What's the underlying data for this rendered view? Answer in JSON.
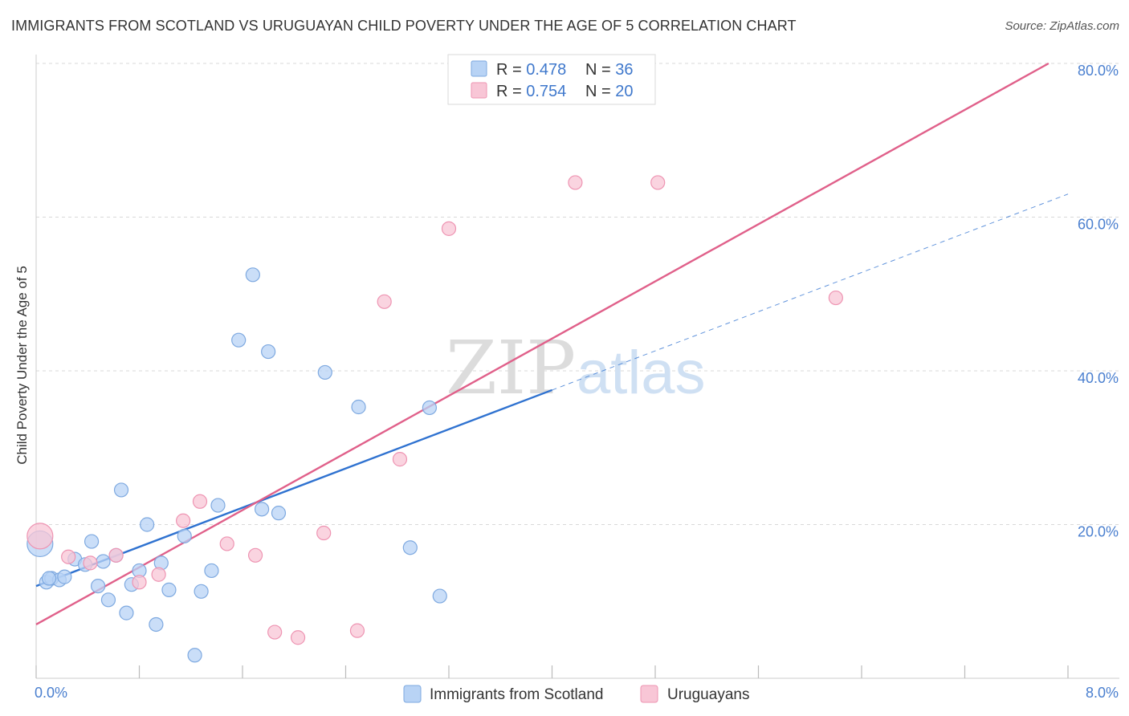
{
  "header": {
    "title": "IMMIGRANTS FROM SCOTLAND VS URUGUAYAN CHILD POVERTY UNDER THE AGE OF 5 CORRELATION CHART",
    "source": "Source: ZipAtlas.com"
  },
  "watermark": {
    "zip": "ZIP",
    "atlas": "atlas"
  },
  "legend_top": {
    "rows": [
      {
        "r_label": "R = ",
        "r_value": "0.478",
        "n_label": "N = ",
        "n_value": "36"
      },
      {
        "r_label": "R = ",
        "r_value": "0.754",
        "n_label": "N = ",
        "n_value": "20"
      }
    ]
  },
  "colors": {
    "blue_fill": "#b8d3f5",
    "blue_stroke": "#7ea9e0",
    "blue_line": "#2f72d0",
    "pink_fill": "#f8c6d6",
    "pink_stroke": "#ee94b2",
    "pink_line": "#e0608a",
    "value_text": "#3f78cc",
    "grid": "#d8d8d8"
  },
  "chart_data": {
    "type": "scatter",
    "xlabel": "",
    "ylabel": "Child Poverty Under the Age of 5",
    "xlim": [
      0,
      8
    ],
    "ylim": [
      0,
      80
    ],
    "x_tick_labels": [
      "0.0%",
      "8.0%"
    ],
    "y_ticks": [
      20,
      40,
      60,
      80
    ],
    "y_tick_labels": [
      "20.0%",
      "40.0%",
      "60.0%",
      "80.0%"
    ],
    "grid": true,
    "legend_position": "bottom-center",
    "series": [
      {
        "name": "Immigrants from Scotland",
        "r": 0.478,
        "n": 36,
        "trend": {
          "x": [
            0.0,
            4.0
          ],
          "y": [
            12.0,
            37.5
          ]
        },
        "trend_extension": {
          "x": [
            4.0,
            8.0
          ],
          "y": [
            37.5,
            63.0
          ]
        },
        "points": [
          [
            0.03,
            17.5
          ],
          [
            0.08,
            12.5
          ],
          [
            0.12,
            13.0
          ],
          [
            0.18,
            12.8
          ],
          [
            0.22,
            13.2
          ],
          [
            0.3,
            15.5
          ],
          [
            0.38,
            14.8
          ],
          [
            0.43,
            17.8
          ],
          [
            0.48,
            12.0
          ],
          [
            0.52,
            15.2
          ],
          [
            0.56,
            10.2
          ],
          [
            0.62,
            16.0
          ],
          [
            0.66,
            24.5
          ],
          [
            0.7,
            8.5
          ],
          [
            0.74,
            12.2
          ],
          [
            0.8,
            14.0
          ],
          [
            0.86,
            20.0
          ],
          [
            0.93,
            7.0
          ],
          [
            0.97,
            15.0
          ],
          [
            1.03,
            11.5
          ],
          [
            1.15,
            18.5
          ],
          [
            1.23,
            3.0
          ],
          [
            1.28,
            11.3
          ],
          [
            1.36,
            14.0
          ],
          [
            1.41,
            22.5
          ],
          [
            1.57,
            44.0
          ],
          [
            1.68,
            52.5
          ],
          [
            1.75,
            22.0
          ],
          [
            1.8,
            42.5
          ],
          [
            1.88,
            21.5
          ],
          [
            2.24,
            39.8
          ],
          [
            2.5,
            35.3
          ],
          [
            2.9,
            17.0
          ],
          [
            3.05,
            35.2
          ],
          [
            3.13,
            10.7
          ],
          [
            0.1,
            13.0
          ]
        ]
      },
      {
        "name": "Uruguayans",
        "r": 0.754,
        "n": 20,
        "trend": {
          "x": [
            0.0,
            7.85
          ],
          "y": [
            7.0,
            80.0
          ]
        },
        "points": [
          [
            0.03,
            18.5
          ],
          [
            0.25,
            15.8
          ],
          [
            0.42,
            15.0
          ],
          [
            0.62,
            16.0
          ],
          [
            0.8,
            12.5
          ],
          [
            0.95,
            13.5
          ],
          [
            1.14,
            20.5
          ],
          [
            1.27,
            23.0
          ],
          [
            1.48,
            17.5
          ],
          [
            1.7,
            16.0
          ],
          [
            1.85,
            6.0
          ],
          [
            2.03,
            5.3
          ],
          [
            2.23,
            18.9
          ],
          [
            2.49,
            6.2
          ],
          [
            2.7,
            49.0
          ],
          [
            2.82,
            28.5
          ],
          [
            3.2,
            58.5
          ],
          [
            4.18,
            64.5
          ],
          [
            4.82,
            64.5
          ],
          [
            6.2,
            49.5
          ]
        ]
      }
    ]
  }
}
